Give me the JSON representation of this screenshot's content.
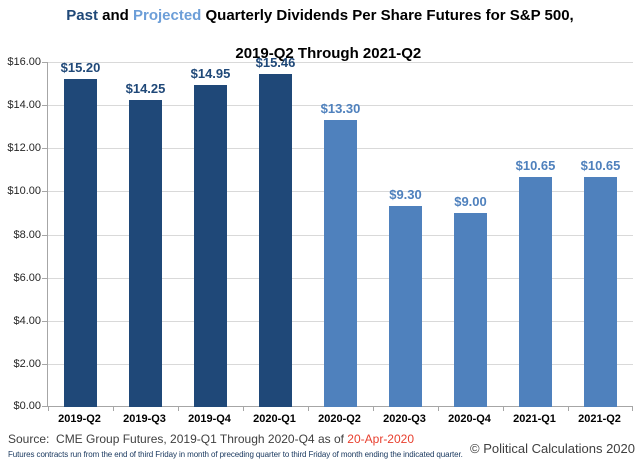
{
  "title": {
    "past": "Past",
    "and": " and ",
    "projected": "Projected",
    "rest": " Quarterly Dividends Per Share Futures for S&P 500,",
    "line2": "2019-Q2 Through 2021-Q2"
  },
  "chart_data": {
    "type": "bar",
    "title": "Past and Projected Quarterly Dividends Per Share Futures for S&P 500, 2019-Q2 Through 2021-Q2",
    "categories": [
      "2019-Q2",
      "2019-Q3",
      "2019-Q4",
      "2020-Q1",
      "2020-Q2",
      "2020-Q3",
      "2020-Q4",
      "2021-Q1",
      "2021-Q2"
    ],
    "series": [
      {
        "name": "Past",
        "color": "#1F4878",
        "label_color": "#1F4878",
        "values": [
          15.2,
          14.25,
          14.95,
          15.46,
          null,
          null,
          null,
          null,
          null
        ]
      },
      {
        "name": "Projected",
        "color": "#4F81BD",
        "label_color": "#4F81BD",
        "values": [
          null,
          null,
          null,
          null,
          13.3,
          9.3,
          9.0,
          10.65,
          10.65
        ]
      }
    ],
    "data_labels": [
      "$15.20",
      "$14.25",
      "$14.95",
      "$15.46",
      "$13.30",
      "$9.30",
      "$9.00",
      "$10.65",
      "$10.65"
    ],
    "xlabel": "",
    "ylabel": "",
    "ylim": [
      0,
      16
    ],
    "y_tick_step": 2,
    "y_tick_labels": [
      "$0.00",
      "$2.00",
      "$4.00",
      "$6.00",
      "$8.00",
      "$10.00",
      "$12.00",
      "$14.00",
      "$16.00"
    ],
    "grid": true,
    "legend_position": "none",
    "colors": {
      "past": "#1F4878",
      "projected": "#4F81BD",
      "gridline": "#D9D9D9",
      "axis": "#A6A6A6"
    }
  },
  "footer": {
    "source_prefix": "Source:  CME Group Futures, 2019-Q1 Through 2020-Q4 as of ",
    "source_date": "20-Apr-2020",
    "footnote": "Futures contracts run from the end of third Friday in month of preceding quarter to third Friday of month ending the indicated quarter.",
    "copyright": "© Political Calculations 2020"
  }
}
